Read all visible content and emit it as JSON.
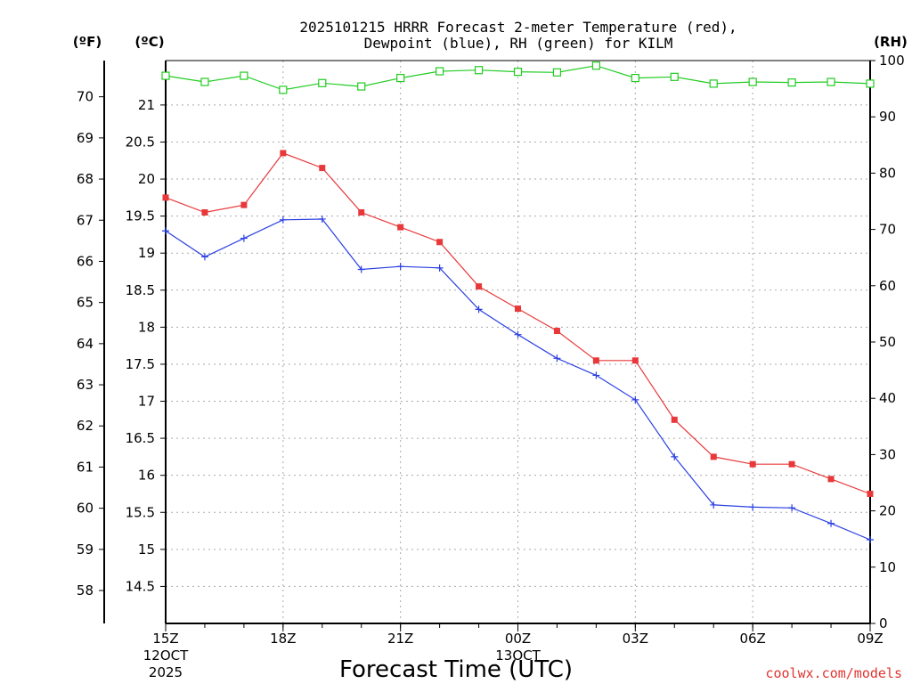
{
  "chart_data": {
    "type": "line",
    "title_line1": "2025101215 HRRR Forecast 2-meter Temperature (red),",
    "title_line2": "Dewpoint (blue), RH (green) for KILM",
    "xlabel": "Forecast Time (UTC)",
    "credit": "coolwx.com/models",
    "x_hours": [
      0,
      1,
      2,
      3,
      4,
      5,
      6,
      7,
      8,
      9,
      10,
      11,
      12,
      13,
      14,
      15,
      16,
      17,
      18
    ],
    "x_ticks": [
      {
        "hour": 0,
        "label": "15Z",
        "sub1": "12OCT",
        "sub2": "2025"
      },
      {
        "hour": 3,
        "label": "18Z",
        "sub1": "",
        "sub2": ""
      },
      {
        "hour": 6,
        "label": "21Z",
        "sub1": "",
        "sub2": ""
      },
      {
        "hour": 9,
        "label": "00Z",
        "sub1": "13OCT",
        "sub2": ""
      },
      {
        "hour": 12,
        "label": "03Z",
        "sub1": "",
        "sub2": ""
      },
      {
        "hour": 15,
        "label": "06Z",
        "sub1": "",
        "sub2": ""
      },
      {
        "hour": 18,
        "label": "09Z",
        "sub1": "",
        "sub2": ""
      }
    ],
    "axes": {
      "fahrenheit": {
        "header": "(ºF)",
        "ticks": [
          58,
          59,
          60,
          61,
          62,
          63,
          64,
          65,
          66,
          67,
          68,
          69,
          70
        ]
      },
      "celsius": {
        "header": "(ºC)",
        "range": [
          14.0,
          21.6
        ],
        "ticks": [
          "14.5",
          "15",
          "15.5",
          "16",
          "16.5",
          "17",
          "17.5",
          "18",
          "18.5",
          "19",
          "19.5",
          "20",
          "20.5",
          "21"
        ]
      },
      "rh": {
        "header": "(RH)",
        "range": [
          0,
          100
        ],
        "ticks": [
          0,
          10,
          20,
          30,
          40,
          50,
          60,
          70,
          80,
          90,
          100
        ]
      }
    },
    "series": [
      {
        "name": "Temperature",
        "unit": "C",
        "color": "#e8383a",
        "marker": "filled-square",
        "values": [
          19.75,
          19.55,
          19.65,
          20.35,
          20.15,
          19.55,
          19.35,
          19.15,
          18.55,
          18.25,
          17.95,
          17.55,
          17.55,
          16.75,
          16.25,
          16.15,
          16.15,
          15.95,
          15.75
        ]
      },
      {
        "name": "Dewpoint",
        "unit": "C",
        "color": "#2a3fe0",
        "marker": "plus",
        "values": [
          19.3,
          18.95,
          19.2,
          19.45,
          19.46,
          18.78,
          18.82,
          18.8,
          18.24,
          17.9,
          17.58,
          17.35,
          17.02,
          16.25,
          15.6,
          15.57,
          15.56,
          15.35,
          15.13
        ]
      },
      {
        "name": "RH",
        "unit": "%",
        "color": "#22cc22",
        "marker": "open-square",
        "values": [
          97.3,
          96.2,
          97.3,
          94.8,
          96.0,
          95.4,
          96.9,
          98.1,
          98.3,
          98.0,
          97.9,
          99.1,
          96.9,
          97.1,
          95.9,
          96.2,
          96.1,
          96.2,
          95.9
        ]
      }
    ]
  }
}
